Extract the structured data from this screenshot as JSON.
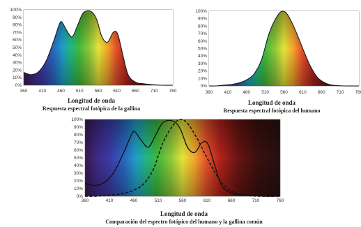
{
  "chart_data": [
    {
      "type": "area",
      "xlabel": "Longitud de onda",
      "caption": "Respuesta espectral fotópica de la gallina",
      "x_ticks": [
        "360",
        "410",
        "460",
        "510",
        "560",
        "610",
        "660",
        "710",
        "760"
      ],
      "y_ticks": [
        "100%",
        "90%",
        "80%",
        "70%",
        "60%",
        "50%",
        "40%",
        "30%",
        "20%",
        "10%",
        "0%"
      ],
      "xlim": [
        360,
        760
      ],
      "ylim": [
        0,
        100
      ],
      "series": [
        {
          "x": [
            360,
            380,
            400,
            420,
            440,
            455,
            462,
            475,
            490,
            505,
            520,
            540,
            555,
            570,
            585,
            600,
            612,
            625,
            640,
            660,
            680,
            700,
            730,
            760
          ],
          "y": [
            17,
            14,
            18,
            32,
            58,
            80,
            84,
            73,
            64,
            80,
            96,
            98,
            88,
            64,
            57,
            70,
            68,
            42,
            14,
            4,
            2,
            1,
            0,
            0
          ]
        }
      ]
    },
    {
      "type": "area",
      "xlabel": "Longitud de onda",
      "caption": "Respuesta espectral fotópica del humano",
      "x_ticks": [
        "360",
        "410",
        "460",
        "510",
        "560",
        "610",
        "660",
        "710",
        "760"
      ],
      "y_ticks": [
        "100%",
        "90%",
        "80%",
        "70%",
        "60%",
        "50%",
        "40%",
        "30%",
        "20%",
        "10%",
        "0%"
      ],
      "xlim": [
        360,
        760
      ],
      "ylim": [
        0,
        100
      ],
      "series": [
        {
          "x": [
            360,
            380,
            400,
            420,
            440,
            460,
            480,
            500,
            520,
            540,
            555,
            570,
            590,
            610,
            630,
            650,
            670,
            690,
            720,
            760
          ],
          "y": [
            0,
            0,
            1,
            2,
            4,
            8,
            16,
            35,
            70,
            92,
            100,
            95,
            75,
            50,
            27,
            11,
            4,
            1,
            0,
            0
          ]
        }
      ]
    },
    {
      "type": "line",
      "xlabel": "Longitud de onda",
      "caption": "Comparación del espectro fotópico del humano y la gallina común",
      "x_ticks": [
        "360",
        "410",
        "460",
        "510",
        "560",
        "610",
        "660",
        "710",
        "760"
      ],
      "y_ticks": [
        "100%",
        "90%",
        "80%",
        "70%",
        "60%",
        "50%",
        "40%",
        "30%",
        "20%",
        "10%",
        "0%"
      ],
      "xlim": [
        360,
        760
      ],
      "ylim": [
        0,
        100
      ],
      "series": [
        {
          "style": "solid",
          "x": [
            360,
            380,
            400,
            420,
            440,
            455,
            462,
            475,
            490,
            505,
            520,
            540,
            555,
            570,
            585,
            600,
            612,
            625,
            640,
            660,
            680,
            700,
            730,
            760
          ],
          "y": [
            17,
            14,
            18,
            32,
            58,
            80,
            84,
            73,
            64,
            80,
            96,
            98,
            88,
            64,
            57,
            70,
            68,
            42,
            14,
            4,
            2,
            1,
            0,
            0
          ]
        },
        {
          "style": "dashed",
          "x": [
            360,
            380,
            400,
            420,
            440,
            460,
            480,
            500,
            520,
            540,
            555,
            570,
            590,
            610,
            630,
            650,
            670,
            690,
            720,
            760
          ],
          "y": [
            0,
            0,
            1,
            2,
            4,
            8,
            16,
            35,
            70,
            92,
            100,
            95,
            75,
            50,
            27,
            11,
            4,
            1,
            0,
            0
          ]
        }
      ]
    }
  ]
}
